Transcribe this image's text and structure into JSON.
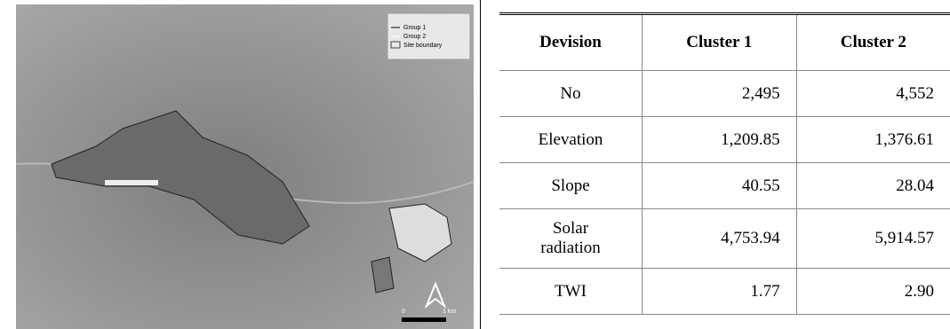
{
  "map": {
    "legend": [
      "Group 1",
      "Group 2",
      "Site boundary"
    ],
    "scale": [
      "0",
      "1 km"
    ]
  },
  "table": {
    "header": [
      "Devision",
      "Cluster  1",
      "Cluster  2"
    ],
    "rows": [
      [
        "No",
        "2,495",
        "4,552"
      ],
      [
        "Elevation",
        "1,209.85",
        "1,376.61"
      ],
      [
        "Slope",
        "40.55",
        "28.04"
      ],
      [
        "Solar radiation",
        "4,753.94",
        "5,914.57"
      ],
      [
        "TWI",
        "1.77",
        "2.90"
      ]
    ]
  }
}
